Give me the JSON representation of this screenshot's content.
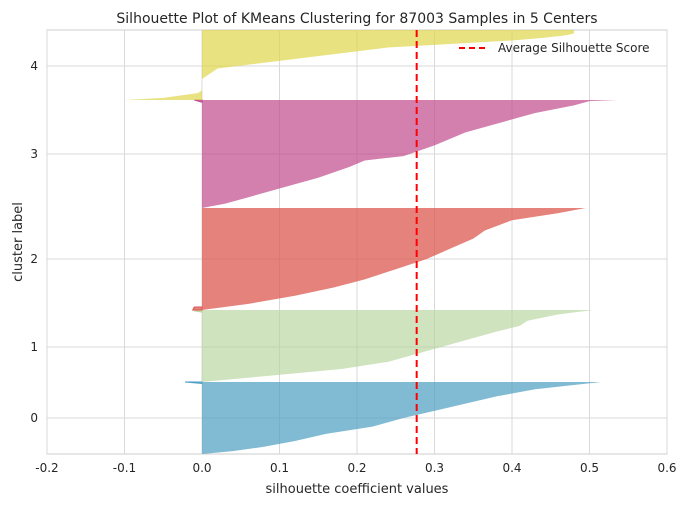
{
  "chart_data": {
    "type": "area",
    "title": "Silhouette Plot of KMeans Clustering for 87003 Samples in 5 Centers",
    "xlabel": "silhouette coefficient values",
    "ylabel": "cluster label",
    "xlim": [
      -0.2,
      0.6
    ],
    "x_ticks": [
      "-0.2",
      "-0.1",
      "0.0",
      "0.1",
      "0.2",
      "0.3",
      "0.4",
      "0.5",
      "0.6"
    ],
    "y_tick_labels": [
      "0",
      "1",
      "2",
      "3",
      "4"
    ],
    "grid": true,
    "legend": {
      "position": "top-right",
      "label": "Average Silhouette Score"
    },
    "average_silhouette_score": 0.277,
    "average_line_color": "#ff0000",
    "clusters": [
      {
        "label": "0",
        "color": "#4c9ec0",
        "fill_opacity": 0.7,
        "profile": [
          [
            0,
            0.515
          ],
          [
            0.03,
            0.49
          ],
          [
            0.1,
            0.43
          ],
          [
            0.2,
            0.38
          ],
          [
            0.35,
            0.32
          ],
          [
            0.5,
            0.26
          ],
          [
            0.62,
            0.22
          ],
          [
            0.72,
            0.16
          ],
          [
            0.82,
            0.12
          ],
          [
            0.9,
            0.08
          ],
          [
            0.96,
            0.04
          ],
          [
            1,
            0.0
          ]
        ],
        "neg_tail": [
          [
            0,
            -0.022
          ],
          [
            0.02,
            0.0
          ]
        ]
      },
      {
        "label": "1",
        "color": "#b5d49c",
        "fill_opacity": 0.65,
        "profile": [
          [
            0,
            0.505
          ],
          [
            0.06,
            0.46
          ],
          [
            0.15,
            0.42
          ],
          [
            0.22,
            0.41
          ],
          [
            0.3,
            0.38
          ],
          [
            0.45,
            0.33
          ],
          [
            0.6,
            0.28
          ],
          [
            0.72,
            0.24
          ],
          [
            0.82,
            0.18
          ],
          [
            0.92,
            0.08
          ],
          [
            1,
            0.0
          ]
        ],
        "neg_tail": [
          [
            0,
            0.0
          ],
          [
            0.01,
            -0.01
          ],
          [
            0.03,
            0.0
          ]
        ]
      },
      {
        "label": "2",
        "color": "#dd5850",
        "fill_opacity": 0.75,
        "profile": [
          [
            0,
            0.495
          ],
          [
            0.05,
            0.46
          ],
          [
            0.12,
            0.4
          ],
          [
            0.22,
            0.365
          ],
          [
            0.3,
            0.35
          ],
          [
            0.4,
            0.32
          ],
          [
            0.5,
            0.29
          ],
          [
            0.6,
            0.25
          ],
          [
            0.7,
            0.21
          ],
          [
            0.78,
            0.17
          ],
          [
            0.86,
            0.12
          ],
          [
            0.94,
            0.06
          ],
          [
            1,
            0.0
          ]
        ],
        "neg_tail": [
          [
            0.97,
            -0.01
          ],
          [
            1,
            -0.012
          ]
        ]
      },
      {
        "label": "3",
        "color": "#c04a8c",
        "fill_opacity": 0.7,
        "profile": [
          [
            0,
            0.535
          ],
          [
            0.01,
            0.5
          ],
          [
            0.05,
            0.48
          ],
          [
            0.12,
            0.43
          ],
          [
            0.2,
            0.39
          ],
          [
            0.3,
            0.34
          ],
          [
            0.42,
            0.3
          ],
          [
            0.52,
            0.26
          ],
          [
            0.56,
            0.21
          ],
          [
            0.62,
            0.19
          ],
          [
            0.72,
            0.15
          ],
          [
            0.82,
            0.1
          ],
          [
            0.9,
            0.06
          ],
          [
            0.96,
            0.03
          ],
          [
            1,
            0.0
          ]
        ],
        "neg_tail": [
          [
            0,
            -0.01
          ],
          [
            0.02,
            0.0
          ]
        ]
      },
      {
        "label": "4",
        "color": "#dfd54a",
        "fill_opacity": 0.7,
        "profile": [
          [
            0,
            0.0
          ],
          [
            0.05,
            -0.005
          ],
          [
            0.1,
            -0.02
          ],
          [
            0.15,
            -0.05
          ],
          [
            0.18,
            -0.1
          ],
          [
            0.2,
            0.0
          ]
        ],
        "top_profile": [
          [
            0.2,
            0.48
          ],
          [
            0.3,
            0.47
          ],
          [
            0.45,
            0.44
          ],
          [
            0.6,
            0.4
          ],
          [
            0.75,
            0.34
          ],
          [
            0.9,
            0.28
          ],
          [
            1,
            0.24
          ]
        ]
      }
    ]
  }
}
